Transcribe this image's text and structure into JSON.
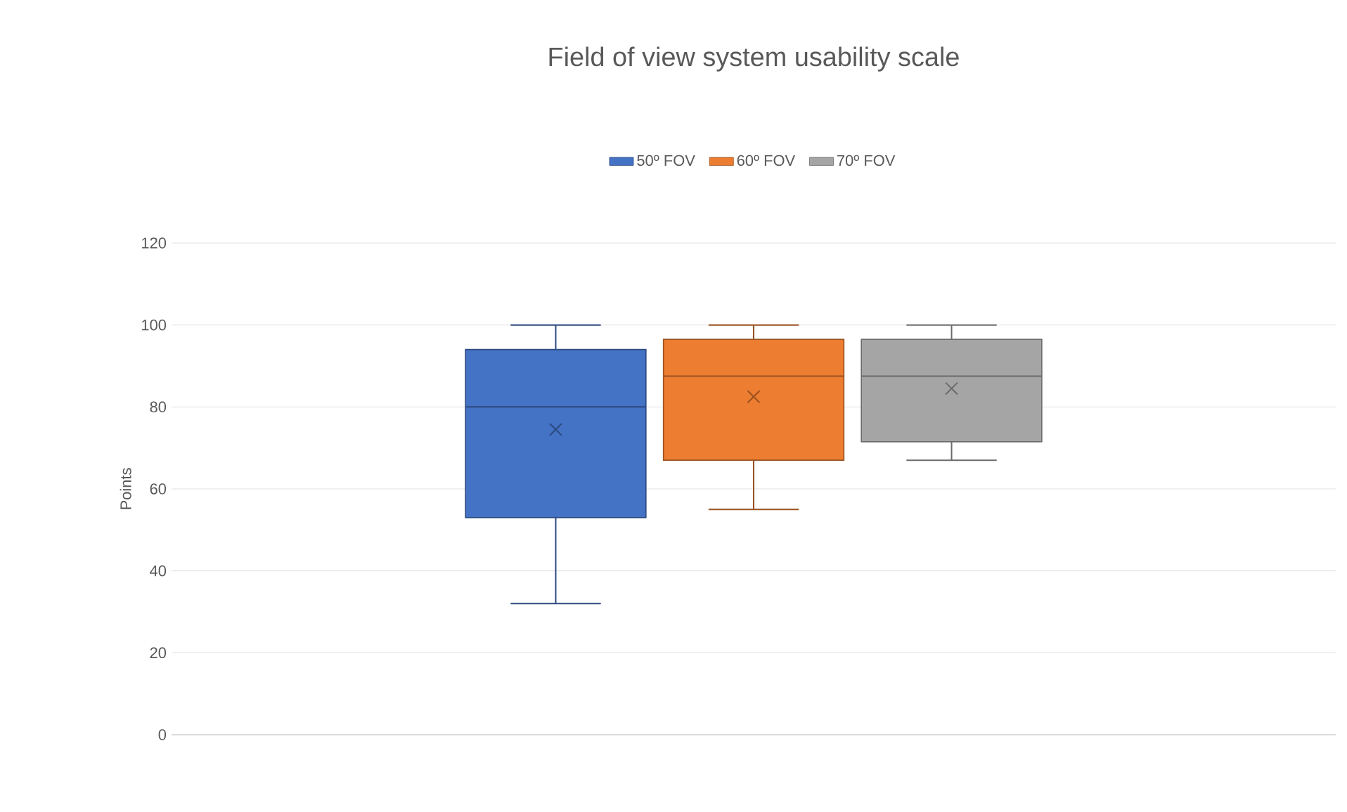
{
  "chart_data": {
    "type": "box",
    "title": "Field of view system usability scale",
    "ylabel": "Points",
    "categories": [
      null
    ],
    "series": [
      {
        "name": "50º FOV",
        "color": "#4472c4",
        "boxes": [
          {
            "low": 32,
            "q1": 53,
            "median": 80,
            "q3": 94,
            "high": 100,
            "mean": 74.5
          }
        ]
      },
      {
        "name": "60º FOV",
        "color": "#ed7d31",
        "boxes": [
          {
            "low": 55,
            "q1": 67,
            "median": 87.5,
            "q3": 96.5,
            "high": 100,
            "mean": 82.5
          }
        ]
      },
      {
        "name": "70º FOV",
        "color": "#a5a5a5",
        "boxes": [
          {
            "low": 67,
            "q1": 71.5,
            "median": 87.5,
            "q3": 96.5,
            "high": 100,
            "mean": 84.5
          }
        ]
      }
    ],
    "ylim": [
      0,
      120
    ],
    "yticks": [
      0,
      20,
      40,
      60,
      80,
      100,
      120
    ],
    "grid": "y",
    "legend": "top"
  }
}
